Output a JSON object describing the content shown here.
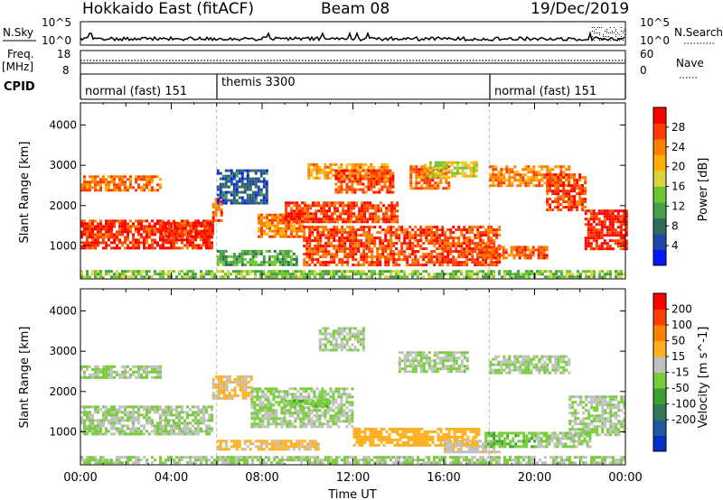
{
  "header": {
    "station": "Hokkaido East (fitACF)",
    "beam": "Beam 08",
    "date": "19/Dec/2019"
  },
  "status_panels": {
    "nsky_label": "N.Sky",
    "nsky_ticks": [
      "10^5",
      "10^0"
    ],
    "nsearch_label": "N.Search",
    "nsearch_ticks": [
      "10^5",
      "10^0"
    ],
    "freq_label": "Freq.",
    "freq_unit": "[MHz]",
    "freq_ticks": [
      "18",
      "8"
    ],
    "nave_label": "Nave",
    "nave_ticks": [
      "60",
      "0"
    ],
    "cpid_label": "CPID",
    "cpid_segments": [
      {
        "label": "normal (fast) 151",
        "start_hour": 0,
        "end_hour": 6
      },
      {
        "label": "themis 3300",
        "start_hour": 6,
        "end_hour": 18
      },
      {
        "label": "normal (fast) 151",
        "start_hour": 18,
        "end_hour": 24
      }
    ]
  },
  "chart_data": [
    {
      "type": "heatmap",
      "panel": "power",
      "xlabel": "",
      "ylabel": "Slant Range [km]",
      "xlim": [
        0,
        24
      ],
      "ylim": [
        180,
        4550
      ],
      "y_ticks": [
        "1000",
        "2000",
        "3000",
        "4000"
      ],
      "colorbar": {
        "label": "Power [dB]",
        "range": [
          0,
          32
        ],
        "tick_labels": [
          "4",
          "8",
          "12",
          "16",
          "20",
          "24",
          "28"
        ],
        "colors": [
          "#0018ff",
          "#2347a8",
          "#2f6d5a",
          "#46a047",
          "#6cc62f",
          "#d8d63b",
          "#ffb000",
          "#ff7f00",
          "#ff3c00",
          "#ff0000"
        ]
      },
      "echo_bands": [
        {
          "x": [
            0.0,
            5.8
          ],
          "y": [
            950,
            1650
          ],
          "value": 28
        },
        {
          "x": [
            0.0,
            3.5
          ],
          "y": [
            2350,
            2750
          ],
          "value": 25
        },
        {
          "x": [
            3.5,
            5.8
          ],
          "y": [
            1250,
            1600
          ],
          "value": 29
        },
        {
          "x": [
            5.8,
            6.2
          ],
          "y": [
            1600,
            2200
          ],
          "value": 26
        },
        {
          "x": [
            6.0,
            8.2
          ],
          "y": [
            2050,
            2900
          ],
          "value": 6
        },
        {
          "x": [
            6.0,
            9.5
          ],
          "y": [
            550,
            900
          ],
          "value": 12
        },
        {
          "x": [
            7.8,
            9.8
          ],
          "y": [
            1250,
            1800
          ],
          "value": 24
        },
        {
          "x": [
            9.0,
            14.0
          ],
          "y": [
            1600,
            2100
          ],
          "value": 28
        },
        {
          "x": [
            9.8,
            18.5
          ],
          "y": [
            550,
            1500
          ],
          "value": 27
        },
        {
          "x": [
            10.0,
            13.5
          ],
          "y": [
            2650,
            3050
          ],
          "value": 22
        },
        {
          "x": [
            11.2,
            13.8
          ],
          "y": [
            2350,
            2900
          ],
          "value": 27
        },
        {
          "x": [
            14.5,
            16.2
          ],
          "y": [
            2450,
            3000
          ],
          "value": 25
        },
        {
          "x": [
            15.0,
            17.5
          ],
          "y": [
            2700,
            3100
          ],
          "value": 18
        },
        {
          "x": [
            17.5,
            20.5
          ],
          "y": [
            700,
            1000
          ],
          "value": 26
        },
        {
          "x": [
            18.0,
            21.5
          ],
          "y": [
            2500,
            3000
          ],
          "value": 24
        },
        {
          "x": [
            20.5,
            22.2
          ],
          "y": [
            1900,
            2800
          ],
          "value": 27
        },
        {
          "x": [
            22.2,
            24.0
          ],
          "y": [
            900,
            1900
          ],
          "value": 29
        },
        {
          "x": [
            0.0,
            24.0
          ],
          "y": [
            250,
            400
          ],
          "value": 14
        }
      ]
    },
    {
      "type": "heatmap",
      "panel": "velocity",
      "xlabel": "Time UT",
      "ylabel": "Slant Range [km]",
      "xlim": [
        0,
        24
      ],
      "ylim": [
        180,
        4550
      ],
      "x_ticks": [
        "00:00",
        "04:00",
        "08:00",
        "12:00",
        "16:00",
        "20:00",
        "00:00"
      ],
      "y_ticks": [
        "1000",
        "2000",
        "3000",
        "4000"
      ],
      "colorbar": {
        "label": "Velocity [m s^-1]",
        "range": [
          -250,
          250
        ],
        "tick_labels": [
          "200",
          "100",
          "50",
          "15",
          "-15",
          "-50",
          "-100",
          "-200"
        ],
        "colors": [
          "#0030c8",
          "#1f5aa0",
          "#2f7d55",
          "#3fa030",
          "#78cc3a",
          "#c0c0c0",
          "#ffb020",
          "#ff8000",
          "#ff4000",
          "#ff0000"
        ]
      },
      "echo_bands": [
        {
          "x": [
            0.0,
            5.8
          ],
          "y": [
            950,
            1650
          ],
          "value": 0
        },
        {
          "x": [
            0.0,
            3.5
          ],
          "y": [
            2350,
            2650
          ],
          "value": 0
        },
        {
          "x": [
            5.8,
            7.5
          ],
          "y": [
            1800,
            2400
          ],
          "value": 60
        },
        {
          "x": [
            6.0,
            10.5
          ],
          "y": [
            550,
            800
          ],
          "value": 60
        },
        {
          "x": [
            7.5,
            12.0
          ],
          "y": [
            1100,
            2100
          ],
          "value": 0
        },
        {
          "x": [
            9.0,
            11.0
          ],
          "y": [
            1600,
            1800
          ],
          "value": -40
        },
        {
          "x": [
            10.5,
            12.5
          ],
          "y": [
            3050,
            3600
          ],
          "value": 0
        },
        {
          "x": [
            12.0,
            17.5
          ],
          "y": [
            650,
            1100
          ],
          "value": 70
        },
        {
          "x": [
            14.0,
            17.0
          ],
          "y": [
            2500,
            3000
          ],
          "value": 0
        },
        {
          "x": [
            16.0,
            18.5
          ],
          "y": [
            500,
            800
          ],
          "value": 40
        },
        {
          "x": [
            17.8,
            20.0
          ],
          "y": [
            650,
            1000
          ],
          "value": -45
        },
        {
          "x": [
            18.0,
            21.5
          ],
          "y": [
            2450,
            2900
          ],
          "value": 0
        },
        {
          "x": [
            20.0,
            22.5
          ],
          "y": [
            650,
            1000
          ],
          "value": 0
        },
        {
          "x": [
            21.5,
            24.0
          ],
          "y": [
            900,
            1900
          ],
          "value": 0
        },
        {
          "x": [
            0.0,
            24.0
          ],
          "y": [
            250,
            400
          ],
          "value": 0
        }
      ]
    }
  ]
}
